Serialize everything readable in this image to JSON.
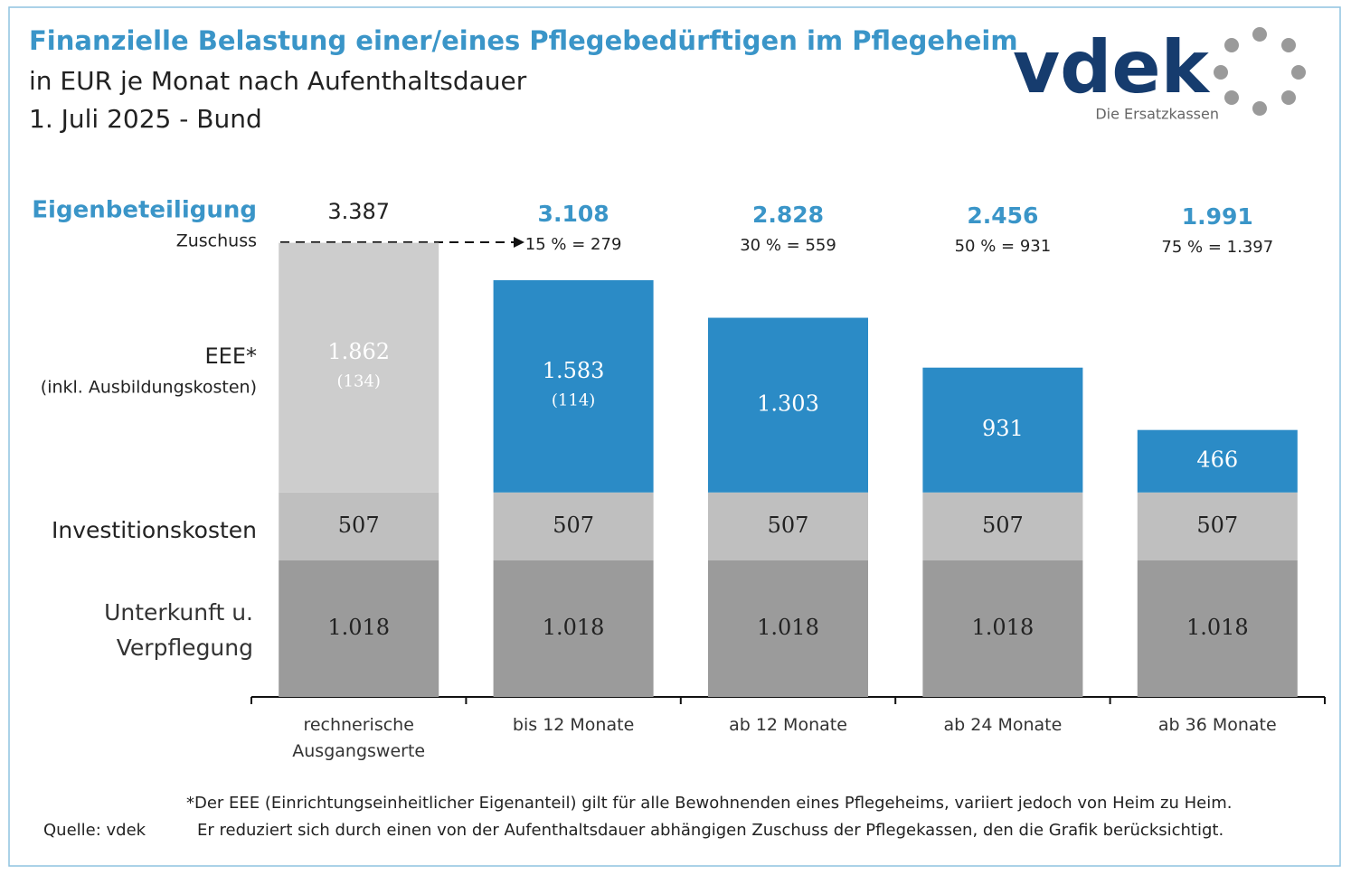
{
  "chart_data": {
    "type": "stacked_bar",
    "title": "Finanzielle Belastung einer/eines Pflegebedürftigen im Pflegeheim",
    "subtitle": "in EUR je Monat nach Aufenthaltsdauer",
    "date": "1. Juli 2025 - Bund",
    "logo": "vdek",
    "logo_tagline": "Die Ersatzkassen",
    "categories": [
      "rechnerische Ausgangswerte",
      "bis 12 Monate",
      "ab 12 Monate",
      "ab 24 Monate",
      "ab 36 Monate"
    ],
    "series": [
      {
        "name": "Unterkunft u. Verpflegung",
        "color": "#9b9b9b",
        "values": [
          1018,
          1018,
          1018,
          1018,
          1018
        ],
        "value_labels": [
          "1.018",
          "1.018",
          "1.018",
          "1.018",
          "1.018"
        ]
      },
      {
        "name": "Investitionskosten",
        "color": "#bfbfbf",
        "values": [
          507,
          507,
          507,
          507,
          507
        ]
      },
      {
        "name": "EEE*",
        "note": "(inkl. Ausbildungskosten)",
        "colors": [
          "#cdcdcd",
          "#2b8bc6",
          "#2b8bc6",
          "#2b8bc6",
          "#2b8bc6"
        ],
        "values": [
          1862,
          1583,
          1303,
          931,
          466
        ],
        "value_labels": [
          "1.862",
          "1.583",
          "1.303",
          "931",
          "466"
        ],
        "sub_labels": [
          "(134)",
          "(114)",
          null,
          null,
          null
        ]
      }
    ],
    "totals": {
      "name": "Eigenbeteiligung",
      "values": [
        3387,
        3108,
        2828,
        2456,
        1991
      ],
      "value_labels": [
        "3.387",
        "3.108",
        "2.828",
        "2.456",
        "1.991"
      ]
    },
    "subsidy": {
      "name": "Zuschuss",
      "labels": [
        null,
        "15 % = 279",
        "30 % = 559",
        "50 % = 931",
        "75 % = 1.397"
      ]
    },
    "footnote": [
      "*Der EEE (Einrichtungseinheitlicher Eigenanteil) gilt für alle Bewohnenden eines Pflegeheims, variiert jedoch von Heim zu Heim.",
      "Er reduziert sich durch einen von der Aufenthaltsdauer abhängigen Zuschuss der Pflegekassen, den die Grafik berücksichtigt."
    ],
    "source": "Quelle: vdek"
  }
}
